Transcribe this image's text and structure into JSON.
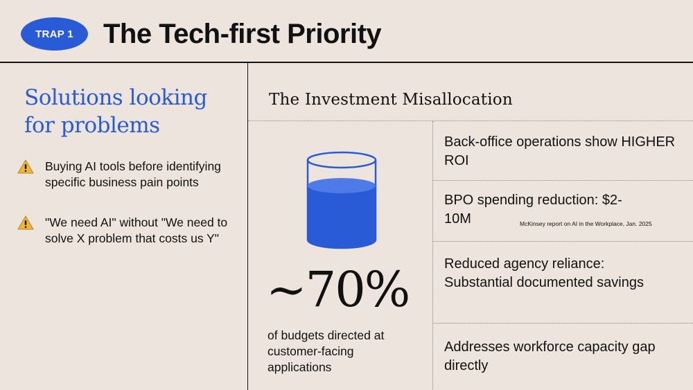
{
  "header": {
    "badge": "TRAP 1",
    "title": "The Tech-first Priority"
  },
  "left": {
    "heading": "Solutions looking for problems",
    "bullets": [
      {
        "icon": "warning-icon",
        "text": "Buying AI tools before identifying specific business pain points"
      },
      {
        "icon": "warning-icon",
        "text": "\"We need AI\" without \"We need to solve X problem that costs us Y\""
      }
    ]
  },
  "middle": {
    "title": "The Investment Misallocation",
    "big_number": "~70%",
    "caption": "of budgets directed at customer-facing applications",
    "glass_fill_fraction": 0.7
  },
  "right": {
    "stats": [
      {
        "text": "Back-office operations show HIGHER ROI"
      },
      {
        "text": "BPO spending reduction: $2-10M"
      },
      {
        "text": "Reduced agency reliance: Substantial documented savings"
      },
      {
        "text": "Addresses workforce capacity gap directly"
      }
    ],
    "source": "McKinsey report on AI in the Workplace, Jan. 2025"
  },
  "colors": {
    "accent": "#2a5bd7",
    "background": "#ede4dd",
    "text": "#111111",
    "warning": "#f2b632"
  }
}
